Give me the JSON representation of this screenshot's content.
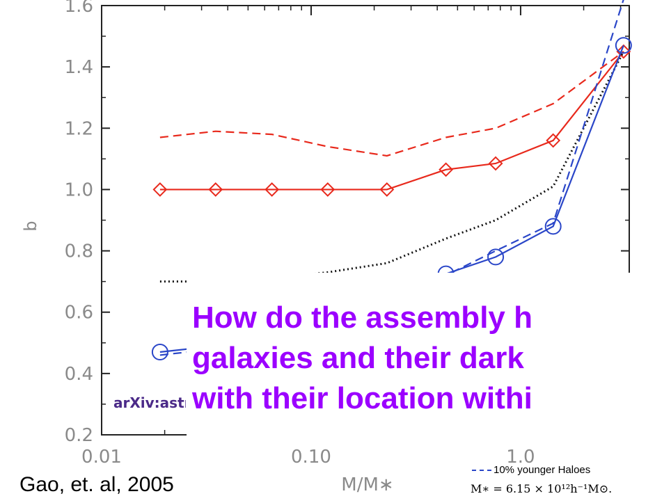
{
  "citation": "Gao, et. al, 2005",
  "arxiv_label": "arXiv:astr",
  "question": {
    "line1": "How do the assembly h",
    "line2": "galaxies and their dark",
    "line3": "with their location withi"
  },
  "legend_younger": "10% younger Haloes",
  "mstar_formula": "M∗ = 6.15 × 10¹²h⁻¹M⊙.",
  "chart_data": {
    "type": "line",
    "xlabel": "M/M∗",
    "ylabel": "b",
    "xscale": "log",
    "xlim": [
      0.01,
      3.3
    ],
    "ylim": [
      0.2,
      1.6
    ],
    "xticks": [
      0.01,
      0.1,
      1.0
    ],
    "xtick_labels": [
      "0.01",
      "0.10",
      "1.0"
    ],
    "yticks": [
      0.2,
      0.4,
      0.6,
      0.8,
      1.0,
      1.2,
      1.4,
      1.6
    ],
    "ytick_labels": [
      "0.2",
      "0.4",
      "0.6",
      "0.8",
      "1.0",
      "1.2",
      "1.4",
      "1.6"
    ],
    "series": [
      {
        "color": "#e8291c",
        "style": "solid",
        "marker": "diamond",
        "x": [
          0.019,
          0.035,
          0.065,
          0.12,
          0.23,
          0.44,
          0.76,
          1.43,
          3.1
        ],
        "y": [
          1.0,
          1.0,
          1.0,
          1.0,
          1.0,
          1.065,
          1.085,
          1.16,
          1.45
        ]
      },
      {
        "color": "#e8291c",
        "style": "dashed",
        "marker": "none",
        "x": [
          0.019,
          0.035,
          0.065,
          0.12,
          0.23,
          0.44,
          0.76,
          1.43,
          3.1
        ],
        "y": [
          1.17,
          1.19,
          1.18,
          1.14,
          1.11,
          1.17,
          1.2,
          1.28,
          1.45
        ]
      },
      {
        "color": "#111111",
        "style": "dotted",
        "marker": "none",
        "x": [
          0.019,
          0.035,
          0.065,
          0.12,
          0.23,
          0.44,
          0.76,
          1.43,
          3.1
        ],
        "y": [
          0.7,
          0.7,
          0.71,
          0.73,
          0.76,
          0.84,
          0.9,
          1.01,
          1.45
        ]
      },
      {
        "color": "#2a46c8",
        "style": "solid",
        "marker": "circle",
        "x": [
          0.019,
          0.035,
          0.44,
          0.76,
          1.43,
          3.1
        ],
        "y": [
          0.47,
          0.49,
          0.725,
          0.78,
          0.88,
          1.47
        ]
      },
      {
        "name": "10% younger Haloes",
        "color": "#2a46c8",
        "style": "dashed",
        "marker": "none",
        "x": [
          0.019,
          0.035,
          0.44,
          0.76,
          1.43,
          3.1
        ],
        "y": [
          0.46,
          0.48,
          0.72,
          0.8,
          0.89,
          1.62
        ]
      }
    ]
  }
}
